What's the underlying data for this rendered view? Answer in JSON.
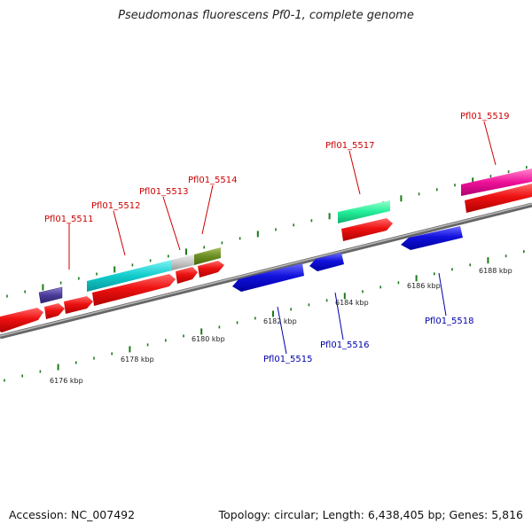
{
  "title": "Pseudomonas fluorescens Pf0-1, complete genome",
  "footer": {
    "accession": "Accession: NC_007492",
    "summary": "Topology: circular; Length: 6,438,405 bp; Genes: 5,816"
  },
  "scale_labels": [
    "6176 kbp",
    "6178 kbp",
    "6180 kbp",
    "6182 kbp",
    "6184 kbp",
    "6186 kbp",
    "6188 kbp"
  ],
  "gene_labels": {
    "forward": [
      "Pfl01_5511",
      "Pfl01_5512",
      "Pfl01_5513",
      "Pfl01_5514",
      "Pfl01_5517",
      "Pfl01_5519"
    ],
    "reverse": [
      "Pfl01_5515",
      "Pfl01_5516",
      "Pfl01_5518"
    ]
  },
  "colors": {
    "forward_cds": "#ee1111",
    "reverse_cds": "#1111dd",
    "label_forward": "#cc0000",
    "label_reverse": "#0000aa",
    "tick": "#1a7a1a",
    "backbone": "#888888"
  }
}
